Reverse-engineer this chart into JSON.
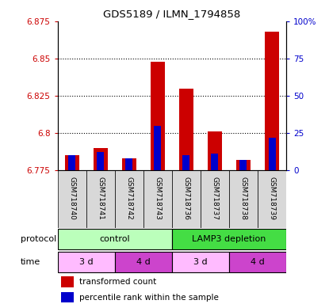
{
  "title": "GDS5189 / ILMN_1794858",
  "samples": [
    "GSM718740",
    "GSM718741",
    "GSM718742",
    "GSM718743",
    "GSM718736",
    "GSM718737",
    "GSM718738",
    "GSM718739"
  ],
  "red_values": [
    6.785,
    6.79,
    6.783,
    6.848,
    6.83,
    6.801,
    6.782,
    6.868
  ],
  "blue_percentiles": [
    10,
    12,
    8,
    30,
    10,
    11,
    7,
    22
  ],
  "ymin": 6.775,
  "ymax": 6.875,
  "y_ticks": [
    6.775,
    6.8,
    6.825,
    6.85,
    6.875
  ],
  "y_tick_labels": [
    "6.775",
    "6.8",
    "6.825",
    "6.85",
    "6.875"
  ],
  "right_y_ticks": [
    0,
    25,
    50,
    75,
    100
  ],
  "right_y_labels": [
    "0",
    "25",
    "50",
    "75",
    "100%"
  ],
  "control_color": "#bbffbb",
  "lamp3_color": "#44dd44",
  "time_3d_color": "#ffbbff",
  "time_4d_color": "#cc44cc",
  "bar_bottom": 6.775,
  "red_color": "#cc0000",
  "blue_color": "#0000cc",
  "legend_red": "transformed count",
  "legend_blue": "percentile rank within the sample",
  "left_axis_color": "#cc0000",
  "right_axis_color": "#0000cc",
  "grid_dotted_at": [
    6.8,
    6.825,
    6.85
  ],
  "bar_width": 0.5,
  "blue_bar_width": 0.25
}
